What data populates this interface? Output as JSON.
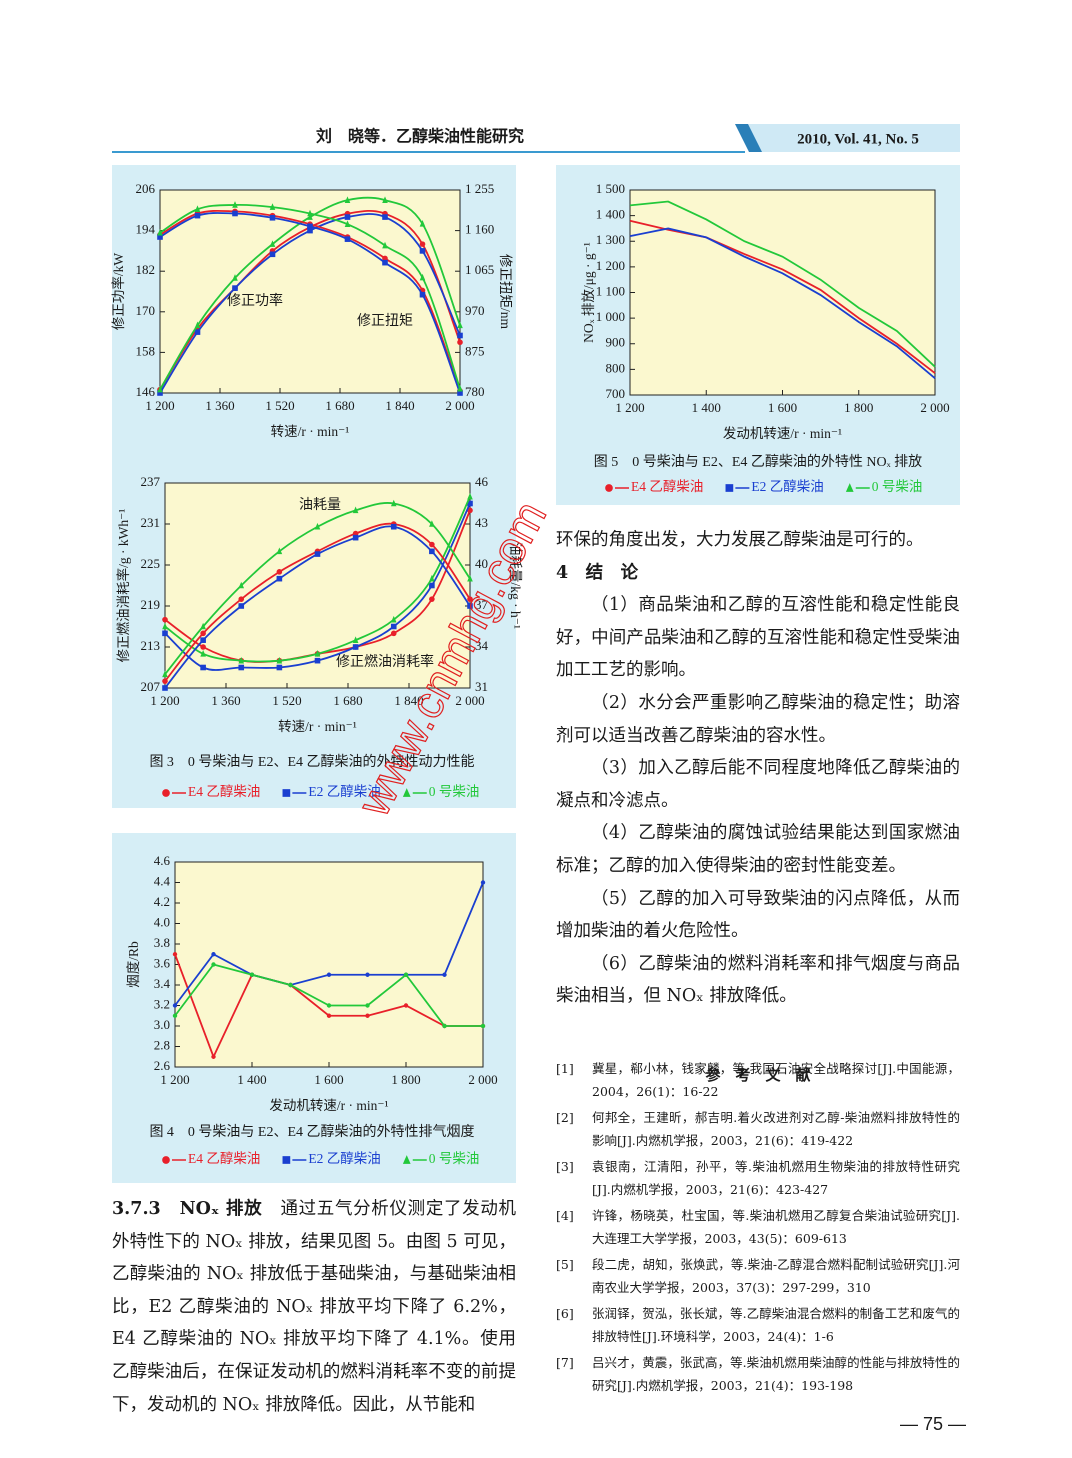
{
  "header": {
    "title": "刘　晓等．乙醇柴油性能研究",
    "journal": "2010, Vol. 41, No. 5"
  },
  "watermark": "www.cnmhg.com",
  "chart_data": [
    {
      "type": "line",
      "smooth": true,
      "plot_color": "#fbf8cf",
      "xlabel": "转速/r · min⁻¹",
      "ylabel": "修正功率/kW",
      "y2label": "修正扭矩/nm",
      "annotations": [
        "修正功率",
        "修正扭矩"
      ],
      "x": [
        1200,
        1300,
        1400,
        1500,
        1600,
        1700,
        1800,
        1900,
        2000
      ],
      "xlim": [
        1200,
        2000
      ],
      "xticks": [
        {
          "value": 1200,
          "label": "1 200"
        },
        {
          "value": 1360,
          "label": "1 360"
        },
        {
          "value": 1520,
          "label": "1 520"
        },
        {
          "value": 1680,
          "label": "1 680"
        },
        {
          "value": 1840,
          "label": "1 840"
        },
        {
          "value": 2000,
          "label": "2 000"
        }
      ],
      "ylim": [
        146,
        206
      ],
      "yticks": [
        146,
        158,
        170,
        182,
        194,
        206
      ],
      "y2lim": [
        780,
        1255
      ],
      "y2ticks": [
        780,
        875,
        970,
        {
          "value": 1065,
          "label": "1 065"
        },
        {
          "value": 1160,
          "label": "1 160"
        },
        {
          "value": 1255,
          "label": "1 255"
        }
      ],
      "series": [
        {
          "color": "#e8202a",
          "marker": "circle",
          "values": [
            147,
            165,
            177,
            188,
            195,
            199,
            199,
            190,
            161
          ]
        },
        {
          "color": "#1a3fd0",
          "marker": "square",
          "values": [
            146,
            164,
            177,
            187,
            194,
            198,
            198,
            188,
            163
          ]
        },
        {
          "color": "#22c83a",
          "marker": "triangle",
          "values": [
            147,
            166,
            180,
            190,
            198,
            203,
            203,
            196,
            166
          ]
        },
        {
          "color": "#e8202a",
          "marker": "circle",
          "axis": "y2",
          "values": [
            1150,
            1200,
            1205,
            1195,
            1175,
            1145,
            1095,
            1020,
            785
          ]
        },
        {
          "color": "#1a3fd0",
          "marker": "square",
          "axis": "y2",
          "values": [
            1145,
            1195,
            1200,
            1190,
            1170,
            1140,
            1085,
            1010,
            780
          ]
        },
        {
          "color": "#22c83a",
          "marker": "triangle",
          "axis": "y2",
          "values": [
            1155,
            1210,
            1220,
            1215,
            1200,
            1175,
            1125,
            1050,
            790
          ]
        }
      ]
    },
    {
      "type": "line",
      "smooth": true,
      "plot_color": "#fbf8cf",
      "xlabel": "转速/r · min⁻¹",
      "ylabel": "修正燃油消耗率/g · kWh⁻¹",
      "y2label": "油耗量/kg · h⁻¹",
      "annotations": [
        "油耗量",
        "修正燃油消耗率"
      ],
      "x": [
        1200,
        1300,
        1400,
        1500,
        1600,
        1700,
        1800,
        1900,
        2000
      ],
      "xlim": [
        1200,
        2000
      ],
      "xticks": [
        {
          "value": 1200,
          "label": "1 200"
        },
        {
          "value": 1360,
          "label": "1 360"
        },
        {
          "value": 1520,
          "label": "1 520"
        },
        {
          "value": 1680,
          "label": "1 680"
        },
        {
          "value": 1840,
          "label": "1 840"
        },
        {
          "value": 2000,
          "label": "2 000"
        }
      ],
      "ylim": [
        207,
        237
      ],
      "yticks": [
        207,
        213,
        219,
        225,
        231,
        237
      ],
      "y2lim": [
        31,
        46
      ],
      "y2ticks": [
        31,
        34,
        37,
        40,
        43,
        46
      ],
      "series": [
        {
          "name": "E4 乙醇柴油",
          "color": "#e8202a",
          "marker": "circle",
          "values": [
            217,
            213,
            211,
            211,
            212,
            213,
            215,
            220,
            233
          ]
        },
        {
          "name": "E2 乙醇柴油",
          "color": "#1a3fd0",
          "marker": "square",
          "values": [
            215,
            210,
            210,
            210,
            211,
            213,
            216,
            222,
            234
          ]
        },
        {
          "name": "0 号柴油",
          "color": "#22c83a",
          "marker": "triangle",
          "values": [
            216,
            212,
            211,
            211,
            212,
            214,
            217,
            223,
            235
          ]
        },
        {
          "color": "#e8202a",
          "marker": "circle",
          "axis": "y2",
          "values": [
            31.5,
            35,
            37.5,
            39.5,
            41,
            42.3,
            43,
            41.5,
            37.5
          ]
        },
        {
          "color": "#1a3fd0",
          "marker": "square",
          "axis": "y2",
          "values": [
            31,
            34.5,
            37,
            39,
            40.8,
            42,
            42.8,
            41,
            37
          ]
        },
        {
          "color": "#22c83a",
          "marker": "triangle",
          "axis": "y2",
          "values": [
            32,
            35.5,
            38.5,
            41,
            42.8,
            44,
            44.5,
            43,
            39
          ]
        }
      ]
    },
    {
      "type": "line",
      "smooth": false,
      "plot_color": "#fbf8cf",
      "xlabel": "发动机转速/r · min⁻¹",
      "ylabel": "烟度/Rb",
      "x": [
        1200,
        1300,
        1400,
        1500,
        1600,
        1700,
        1800,
        1900,
        2000
      ],
      "xlim": [
        1200,
        2000
      ],
      "xticks": [
        {
          "value": 1200,
          "label": "1 200"
        },
        {
          "value": 1400,
          "label": "1 400"
        },
        {
          "value": 1600,
          "label": "1 600"
        },
        {
          "value": 1800,
          "label": "1 800"
        },
        {
          "value": 2000,
          "label": "2 000"
        }
      ],
      "ylim": [
        2.6,
        4.6
      ],
      "yticks": [
        2.6,
        2.8,
        {
          "value": 3,
          "label": "3.0"
        },
        3.2,
        3.4,
        3.6,
        3.8,
        {
          "value": 4,
          "label": "4.0"
        },
        4.2,
        4.4,
        4.6
      ],
      "series": [
        {
          "name": "E4 乙醇柴油",
          "color": "#e8202a",
          "marker": "dot",
          "legend_marker": "circle",
          "values": [
            3.7,
            2.7,
            3.5,
            3.4,
            3.1,
            3.1,
            3.2,
            3.0,
            3.0
          ]
        },
        {
          "name": "E2 乙醇柴油",
          "color": "#1a3fd0",
          "marker": "dot",
          "legend_marker": "square",
          "values": [
            3.2,
            3.7,
            3.5,
            3.4,
            3.5,
            3.5,
            3.5,
            3.5,
            4.4
          ]
        },
        {
          "name": "0 号柴油",
          "color": "#22c83a",
          "marker": "dot",
          "legend_marker": "triangle",
          "values": [
            3.1,
            3.6,
            3.5,
            3.4,
            3.2,
            3.2,
            3.5,
            3.0,
            3.0
          ]
        }
      ]
    },
    {
      "type": "line",
      "smooth": false,
      "plot_color": "#fbf8cf",
      "xlabel": "发动机转速/r · min⁻¹",
      "ylabel": "NOₓ 排放/μg · g⁻¹",
      "x": [
        1200,
        1300,
        1400,
        1500,
        1600,
        1700,
        1800,
        1900,
        2000
      ],
      "xlim": [
        1200,
        2000
      ],
      "xticks": [
        {
          "value": 1200,
          "label": "1 200"
        },
        {
          "value": 1400,
          "label": "1 400"
        },
        {
          "value": 1600,
          "label": "1 600"
        },
        {
          "value": 1800,
          "label": "1 800"
        },
        {
          "value": 2000,
          "label": "2 000"
        }
      ],
      "ylim": [
        700,
        1500
      ],
      "yticks": [
        700,
        800,
        900,
        {
          "value": 1000,
          "label": "1 000"
        },
        {
          "value": 1100,
          "label": "1 100"
        },
        {
          "value": 1200,
          "label": "1 200"
        },
        {
          "value": 1300,
          "label": "1 300"
        },
        {
          "value": 1400,
          "label": "1 400"
        },
        {
          "value": 1500,
          "label": "1 500"
        }
      ],
      "series": [
        {
          "name": "E4 乙醇柴油",
          "color": "#e8202a",
          "legend_marker": "circle",
          "values": [
            1380,
            1345,
            1315,
            1250,
            1190,
            1110,
            1000,
            900,
            785
          ]
        },
        {
          "name": "E2 乙醇柴油",
          "color": "#1a3fd0",
          "legend_marker": "square",
          "values": [
            1320,
            1350,
            1315,
            1240,
            1175,
            1090,
            985,
            890,
            765
          ]
        },
        {
          "name": "0 号柴油",
          "color": "#22c83a",
          "legend_marker": "triangle",
          "values": [
            1440,
            1455,
            1385,
            1300,
            1240,
            1150,
            1040,
            950,
            810
          ]
        }
      ]
    }
  ],
  "figures": [
    {
      "caption": "图 3　0 号柴油与 E2、E4 乙醇柴油的外特性动力性能"
    },
    {
      "caption": "图 4　0 号柴油与 E2、E4 乙醇柴油的外特性排气烟度"
    },
    {
      "caption": "图 5　0 号柴油与 E2、E4 乙醇柴油的外特性 NOₓ 排放"
    }
  ],
  "section_373": {
    "heading": "3.7.3",
    "title": "NOₓ 排放",
    "text": "通过五气分析仪测定了发动机外特性下的 NOₓ 排放，结果见图 5。由图 5 可见，乙醇柴油的 NOₓ 排放低于基础柴油，与基础柴油相比，E2 乙醇柴油的 NOₓ 排放平均下降了 6.2%，E4 乙醇柴油的 NOₓ 排放平均下降了 4.1%。使用乙醇柴油后，在保证发动机的燃料消耗率不变的前提下，发动机的 NOₓ 排放降低。因此，从节能和",
    "continuation": "环保的角度出发，大力发展乙醇柴油是可行的。"
  },
  "conclusion": {
    "heading": "4　结　论",
    "items": [
      "（1）商品柴油和乙醇的互溶性能和稳定性能良好，中间产品柴油和乙醇的互溶性能和稳定性受柴油加工工艺的影响。",
      "（2）水分会严重影响乙醇柴油的稳定性；助溶剂可以适当改善乙醇柴油的容水性。",
      "（3）加入乙醇后能不同程度地降低乙醇柴油的凝点和冷滤点。",
      "（4）乙醇柴油的腐蚀试验结果能达到国家燃油标准；乙醇的加入使得柴油的密封性能变差。",
      "（5）乙醇的加入可导致柴油的闪点降低，从而增加柴油的着火危险性。",
      "（6）乙醇柴油的燃料消耗率和排气烟度与商品柴油相当，但 NOₓ 排放降低。"
    ]
  },
  "references": {
    "heading": "参　考　文　献",
    "items": [
      {
        "num": "[1]",
        "text": "冀星，郗小林，钱家麟，等.我国石油安全战略探讨[J].中国能源，2004，26(1)：16-22"
      },
      {
        "num": "[2]",
        "text": "何邦全，王建昕，郝吉明.着火改进剂对乙醇-柴油燃料排放特性的影响[J].内燃机学报，2003，21(6)：419-422"
      },
      {
        "num": "[3]",
        "text": "袁银南，江清阳，孙平，等.柴油机燃用生物柴油的排放特性研究[J].内燃机学报，2003，21(6)：423-427"
      },
      {
        "num": "[4]",
        "text": "许锋，杨晓英，杜宝国，等.柴油机燃用乙醇复合柴油试验研究[J].大连理工大学学报，2003，43(5)：609-613"
      },
      {
        "num": "[5]",
        "text": "段二虎，胡知，张焕武，等.柴油-乙醇混合燃料配制试验研究[J].河南农业大学学报，2003，37(3)：297-299，310"
      },
      {
        "num": "[6]",
        "text": "张润铎，贺泓，张长斌，等.乙醇柴油混合燃料的制备工艺和废气的排放特性[J].环境科学，2003，24(4)：1-6"
      },
      {
        "num": "[7]",
        "text": "吕兴才，黄震，张武高，等.柴油机燃用柴油醇的性能与排放特性的研究[J].内燃机学报，2003，21(4)：193-198"
      }
    ]
  },
  "page_number": "— 75 —"
}
